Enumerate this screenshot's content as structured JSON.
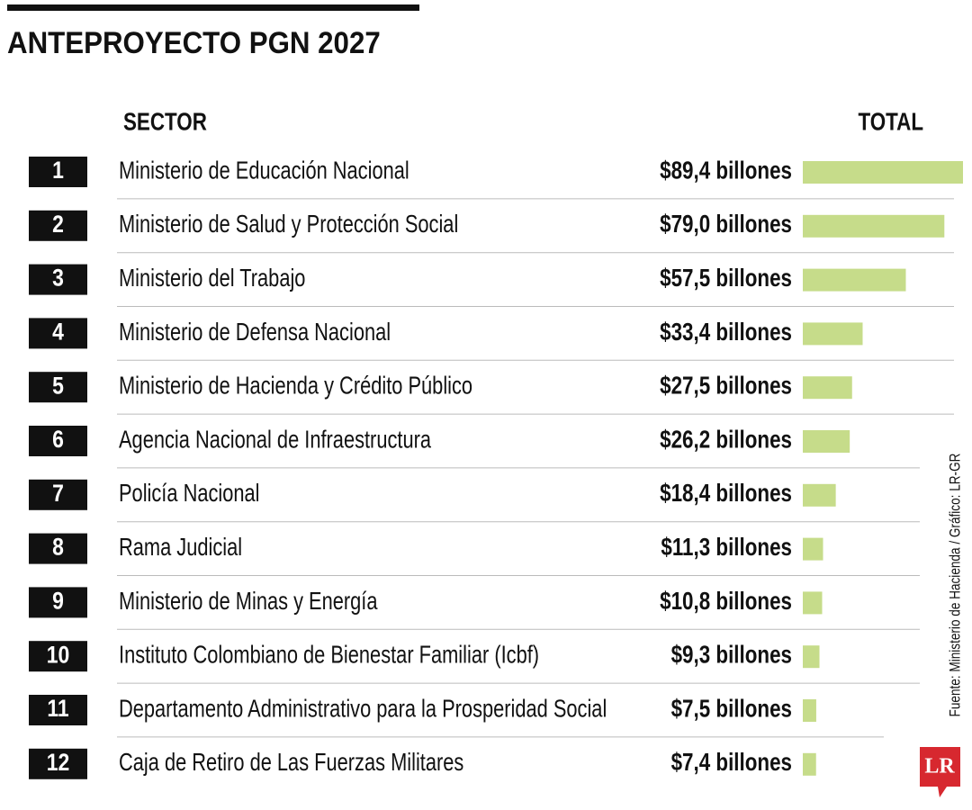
{
  "chart_data": {
    "type": "bar",
    "title": "ANTEPROYECTO PGN 2027",
    "category_header": "SECTOR",
    "value_header": "TOTAL",
    "ranks": [
      "1",
      "2",
      "3",
      "4",
      "5",
      "6",
      "7",
      "8",
      "9",
      "10",
      "11",
      "12"
    ],
    "categories": [
      "Ministerio de Educación Nacional",
      "Ministerio de Salud y Protección Social",
      "Ministerio del Trabajo",
      "Ministerio de Defensa Nacional",
      "Ministerio de Hacienda y Crédito Público",
      "Agencia Nacional de Infraestructura",
      "Policía Nacional",
      "Rama Judicial",
      "Ministerio de Minas y Energía",
      "Instituto Colombiano de Bienestar Familiar (Icbf)",
      "Departamento Administrativo para la Prosperidad Social",
      "Caja de Retiro de Las Fuerzas Militares"
    ],
    "values": [
      89.4,
      79.0,
      57.5,
      33.4,
      27.5,
      26.2,
      18.4,
      11.3,
      10.8,
      9.3,
      7.5,
      7.4
    ],
    "value_labels": [
      "$89,4 billones",
      "$79,0 billones",
      "$57,5 billones",
      "$33,4 billones",
      "$27,5 billones",
      "$26,2 billones",
      "$18,4 billones",
      "$11,3 billones",
      "$10,8 billones",
      "$9,3 billones",
      "$7,5 billones",
      "$7,4 billones"
    ],
    "color": "#c6dc8a",
    "source": "Fuente: Ministerio de Hacienda / Gráfico: LR-GR",
    "logo": "LR"
  }
}
